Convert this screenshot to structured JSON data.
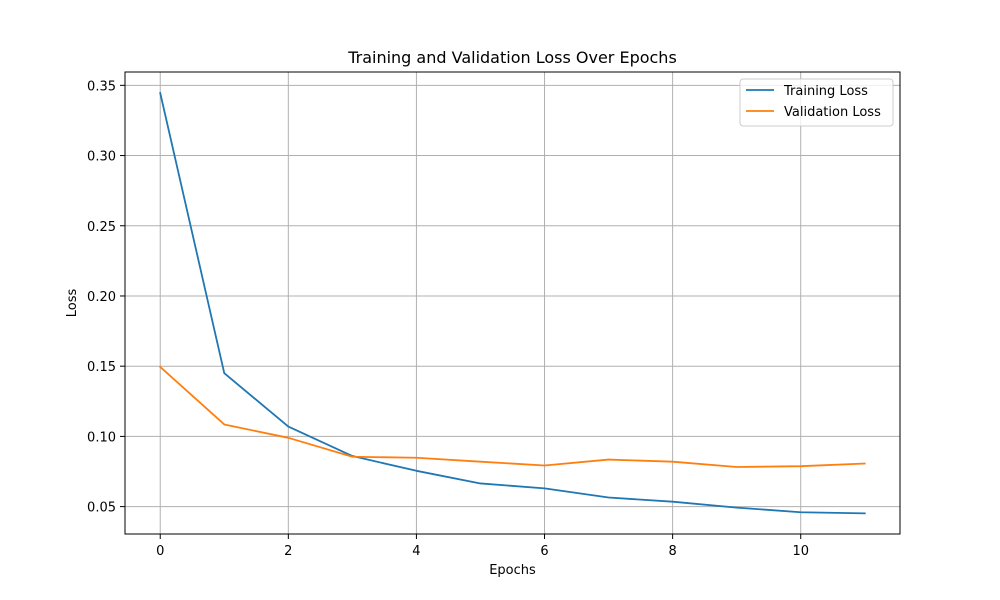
{
  "chart_data": {
    "type": "line",
    "title": "Training and Validation Loss Over Epochs",
    "xlabel": "Epochs",
    "ylabel": "Loss",
    "x": [
      0,
      1,
      2,
      3,
      4,
      5,
      6,
      7,
      8,
      9,
      10,
      11
    ],
    "xlim": [
      -0.55,
      11.55
    ],
    "ylim": [
      0.0305,
      0.3595
    ],
    "xticks": [
      0,
      2,
      4,
      6,
      8,
      10
    ],
    "xtick_labels": [
      "0",
      "2",
      "4",
      "6",
      "8",
      "10"
    ],
    "yticks": [
      0.05,
      0.1,
      0.15,
      0.2,
      0.25,
      0.3,
      0.35
    ],
    "ytick_labels": [
      "0.05",
      "0.10",
      "0.15",
      "0.20",
      "0.25",
      "0.30",
      "0.35"
    ],
    "grid": true,
    "legend_position": "top-right",
    "series": [
      {
        "name": "Training Loss",
        "color": "#1f77b4",
        "values": [
          0.3445,
          0.145,
          0.107,
          0.086,
          0.0755,
          0.0665,
          0.063,
          0.0565,
          0.0535,
          0.0493,
          0.046,
          0.0452
        ]
      },
      {
        "name": "Validation Loss",
        "color": "#ff7f0e",
        "values": [
          0.1495,
          0.1085,
          0.099,
          0.0855,
          0.0848,
          0.082,
          0.0793,
          0.0835,
          0.082,
          0.0782,
          0.0788,
          0.0807
        ]
      }
    ]
  }
}
